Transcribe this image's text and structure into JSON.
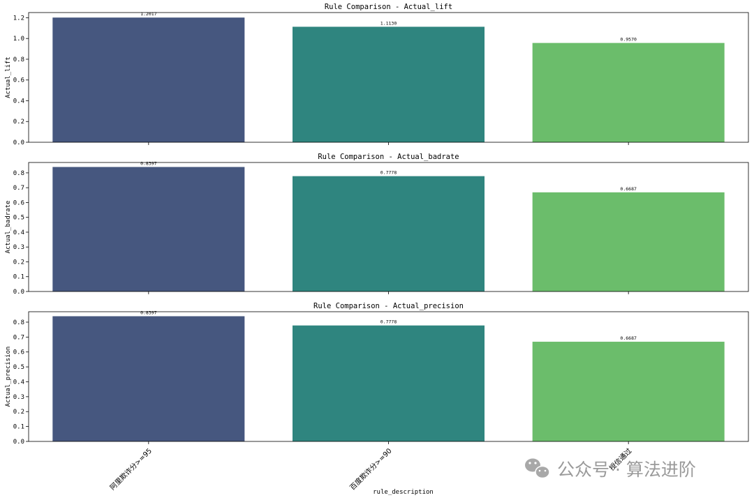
{
  "chart_data": [
    {
      "type": "bar",
      "title": "Rule Comparison - Actual_lift",
      "ylabel": "Actual_lift",
      "xlabel": "",
      "categories": [
        "阿里欺诈分>=95",
        "百度欺诈分>=90",
        "授信通过"
      ],
      "values": [
        1.2017,
        1.113,
        0.957
      ],
      "data_labels": [
        "1.2017",
        "1.1130",
        "0.9570"
      ],
      "ylim": [
        0,
        1.25
      ],
      "yticks": [
        0.0,
        0.2,
        0.4,
        0.6,
        0.8,
        1.0,
        1.2
      ],
      "ytick_labels": [
        "0.0",
        "0.2",
        "0.4",
        "0.6",
        "0.8",
        "1.0",
        "1.2"
      ],
      "colors": [
        "#46577f",
        "#2f857f",
        "#6bbd6b"
      ],
      "grid": false
    },
    {
      "type": "bar",
      "title": "Rule Comparison - Actual_badrate",
      "ylabel": "Actual_badrate",
      "xlabel": "",
      "categories": [
        "阿里欺诈分>=95",
        "百度欺诈分>=90",
        "授信通过"
      ],
      "values": [
        0.8397,
        0.7778,
        0.6687
      ],
      "data_labels": [
        "0.8397",
        "0.7778",
        "0.6687"
      ],
      "ylim": [
        0,
        0.87
      ],
      "yticks": [
        0.0,
        0.1,
        0.2,
        0.3,
        0.4,
        0.5,
        0.6,
        0.7,
        0.8
      ],
      "ytick_labels": [
        "0.0",
        "0.1",
        "0.2",
        "0.3",
        "0.4",
        "0.5",
        "0.6",
        "0.7",
        "0.8"
      ],
      "colors": [
        "#46577f",
        "#2f857f",
        "#6bbd6b"
      ],
      "grid": false
    },
    {
      "type": "bar",
      "title": "Rule Comparison - Actual_precision",
      "ylabel": "Actual_precision",
      "xlabel": "rule_description",
      "categories": [
        "阿里欺诈分>=95",
        "百度欺诈分>=90",
        "授信通过"
      ],
      "values": [
        0.8397,
        0.7778,
        0.6687
      ],
      "data_labels": [
        "0.8397",
        "0.7778",
        "0.6687"
      ],
      "ylim": [
        0,
        0.87
      ],
      "yticks": [
        0.0,
        0.1,
        0.2,
        0.3,
        0.4,
        0.5,
        0.6,
        0.7,
        0.8
      ],
      "ytick_labels": [
        "0.0",
        "0.1",
        "0.2",
        "0.3",
        "0.4",
        "0.5",
        "0.6",
        "0.7",
        "0.8"
      ],
      "colors": [
        "#46577f",
        "#2f857f",
        "#6bbd6b"
      ],
      "grid": false
    }
  ],
  "watermark": {
    "text": "公众号 · 算法进阶",
    "icon": "wechat-icon",
    "color": "#9a9a9a"
  }
}
